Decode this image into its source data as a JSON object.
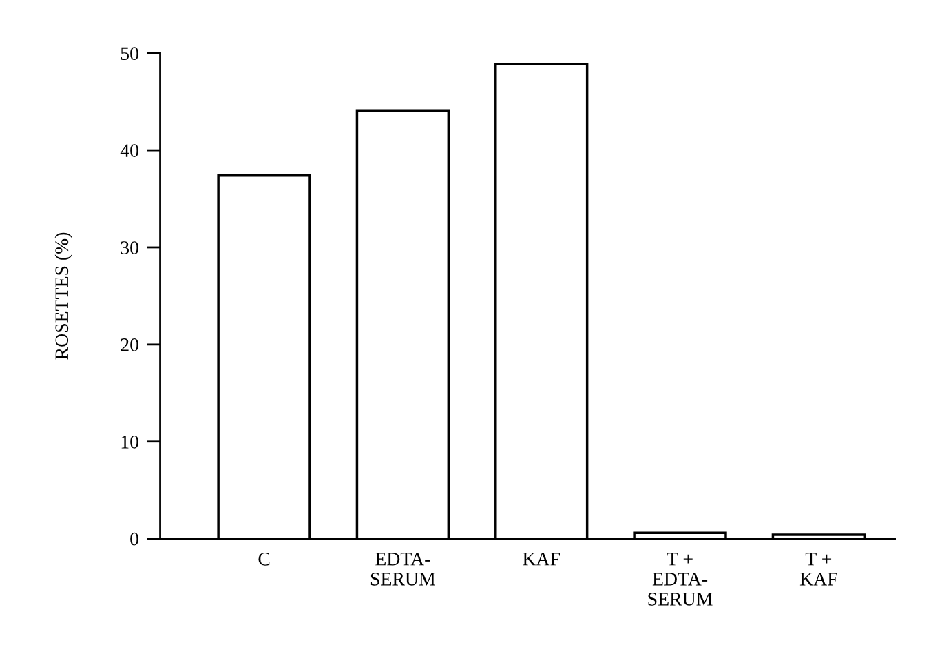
{
  "chart_data": {
    "type": "bar",
    "ylabel": "ROSETTES (%)",
    "categories": [
      "C",
      "EDTA-\nSERUM",
      "KAF",
      "T +\nEDTA-\nSERUM",
      "T +\nKAF"
    ],
    "values": [
      37.4,
      44.1,
      48.9,
      0.6,
      0.4
    ],
    "color": "#ffffff",
    "ylim": [
      0,
      50
    ],
    "yticks": [
      0,
      10,
      20,
      30,
      40,
      50
    ],
    "grid": false
  }
}
